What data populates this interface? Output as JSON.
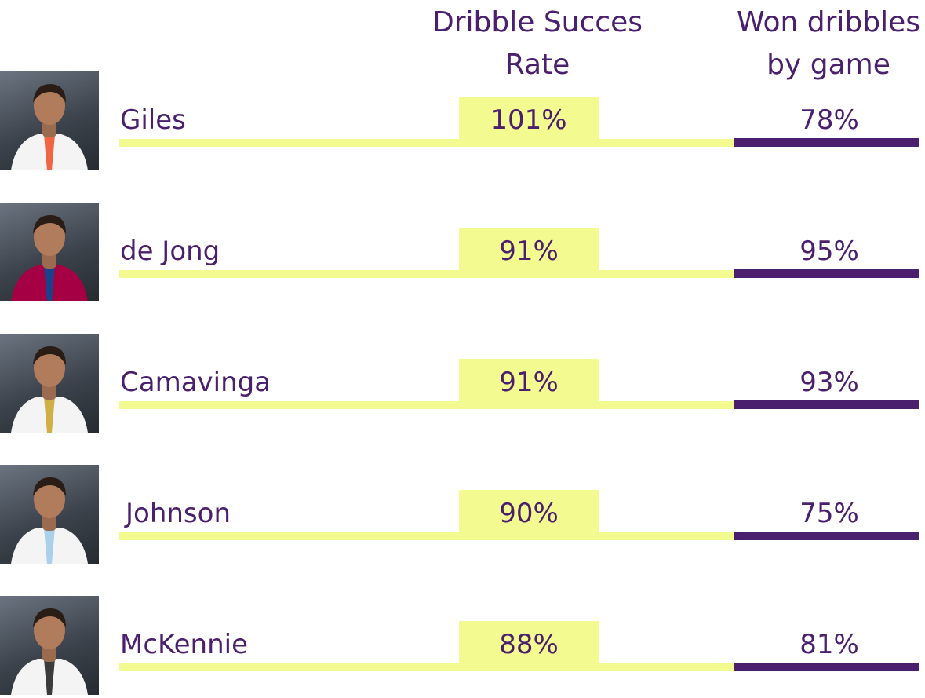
{
  "chart_data": {
    "type": "table",
    "columns": [
      "Dribble Succes Rate",
      "Won dribbles by game"
    ],
    "header_rate_line1": "Dribble Succes",
    "header_rate_line2": "Rate",
    "header_won_line1": "Won dribbles",
    "header_won_line2": "by game",
    "rows": [
      {
        "name": "Giles",
        "rate": "101%",
        "won": "78%",
        "kit": "#f4f4f4",
        "accent": "#ef4b23"
      },
      {
        "name": "de Jong",
        "rate": "91%",
        "won": "95%",
        "kit": "#a50044",
        "accent": "#004d98"
      },
      {
        "name": "Camavinga",
        "rate": "91%",
        "won": "93%",
        "kit": "#f4f4f4",
        "accent": "#c9a227"
      },
      {
        "name": "Johnson",
        "rate": "90%",
        "won": "75%",
        "kit": "#f4f4f4",
        "accent": "#9ec9e8"
      },
      {
        "name": "McKennie",
        "rate": "88%",
        "won": "81%",
        "kit": "#f4f4f4",
        "accent": "#1a1a1a"
      }
    ]
  },
  "colors": {
    "accent_purple": "#4a1f6e",
    "highlight_yellow": "#f3fa8f"
  }
}
